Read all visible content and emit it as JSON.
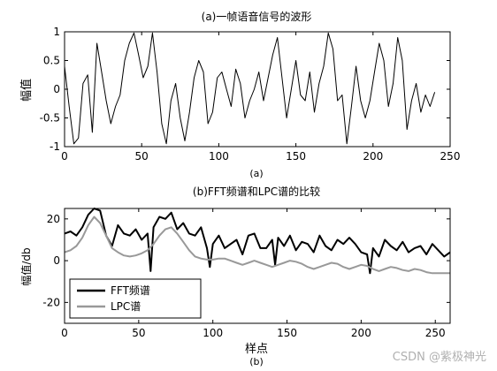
{
  "chart_data": [
    {
      "type": "line",
      "title": "(a)一帧语音信号的波形",
      "xlabel": "(a)",
      "ylabel": "幅值",
      "xlim": [
        0,
        250
      ],
      "ylim": [
        -1,
        1
      ],
      "xticks": [
        "0",
        "50",
        "100",
        "150",
        "200",
        "250"
      ],
      "yticks": [
        "-1",
        "-0.5",
        "0",
        "0.5",
        "1"
      ],
      "series": [
        {
          "color": "#000000",
          "x": [
            0,
            3,
            6,
            9,
            12,
            15,
            18,
            21,
            24,
            27,
            30,
            33,
            36,
            39,
            42,
            45,
            48,
            51,
            54,
            57,
            60,
            63,
            66,
            69,
            72,
            75,
            78,
            81,
            84,
            87,
            90,
            93,
            96,
            99,
            102,
            105,
            108,
            111,
            114,
            117,
            120,
            123,
            126,
            129,
            132,
            135,
            138,
            141,
            144,
            147,
            150,
            153,
            156,
            159,
            162,
            165,
            168,
            171,
            174,
            177,
            180,
            183,
            186,
            189,
            192,
            195,
            198,
            201,
            204,
            207,
            210,
            213,
            216,
            219,
            222,
            225,
            228,
            231,
            234,
            237,
            240
          ],
          "values": [
            0.4,
            -0.3,
            -0.95,
            -0.85,
            0.1,
            0.25,
            -0.75,
            0.8,
            0.3,
            -0.2,
            -0.6,
            -0.3,
            -0.1,
            0.5,
            0.8,
            0.98,
            0.6,
            0.2,
            0.4,
            0.98,
            0.3,
            -0.6,
            -0.95,
            -0.2,
            0.1,
            -0.5,
            -0.9,
            -0.4,
            0.2,
            0.5,
            0.3,
            -0.6,
            -0.4,
            0.2,
            0.3,
            0.0,
            -0.3,
            0.35,
            0.1,
            -0.5,
            -0.2,
            0.0,
            0.3,
            -0.2,
            0.2,
            0.6,
            0.9,
            0.2,
            -0.5,
            0.0,
            0.5,
            -0.1,
            -0.2,
            0.3,
            -0.4,
            0.1,
            0.4,
            0.98,
            0.7,
            -0.2,
            -0.1,
            -0.95,
            -0.3,
            0.4,
            -0.2,
            -0.5,
            -0.2,
            0.3,
            0.8,
            0.5,
            -0.3,
            0.1,
            0.9,
            0.5,
            -0.7,
            -0.2,
            0.1,
            -0.4,
            -0.1,
            -0.3,
            -0.05
          ]
        }
      ]
    },
    {
      "type": "line",
      "title": "(b)FFT频谱和LPC谱的比较",
      "xlabel": "样点",
      "xsublabel": "(b)",
      "ylabel": "幅值/db",
      "xlim": [
        0,
        260
      ],
      "ylim": [
        -30,
        25
      ],
      "xticks": [
        "0",
        "50",
        "100",
        "150",
        "200",
        "250"
      ],
      "yticks": [
        "-20",
        "0",
        "20"
      ],
      "legend_position": "bottom-left",
      "series": [
        {
          "name": "FFT频谱",
          "color": "#000000",
          "x": [
            0,
            4,
            8,
            12,
            16,
            20,
            24,
            28,
            32,
            36,
            40,
            44,
            48,
            52,
            56,
            58,
            60,
            64,
            68,
            72,
            76,
            80,
            84,
            88,
            92,
            96,
            98,
            100,
            104,
            108,
            112,
            116,
            120,
            124,
            128,
            132,
            136,
            140,
            142,
            144,
            148,
            152,
            156,
            160,
            164,
            168,
            172,
            176,
            180,
            184,
            188,
            192,
            196,
            200,
            204,
            206,
            208,
            212,
            216,
            220,
            224,
            228,
            232,
            236,
            240,
            244,
            248,
            252,
            256,
            260
          ],
          "values": [
            13,
            14,
            12,
            16,
            22,
            25,
            24,
            12,
            7,
            17,
            13,
            12,
            15,
            10,
            13,
            -5,
            16,
            21,
            20,
            23,
            15,
            18,
            13,
            12,
            16,
            6,
            -3,
            8,
            12,
            6,
            8,
            10,
            3,
            12,
            13,
            6,
            6,
            10,
            -2,
            11,
            7,
            12,
            5,
            9,
            8,
            4,
            12,
            7,
            5,
            10,
            8,
            11,
            8,
            4,
            3,
            -6,
            6,
            2,
            10,
            7,
            5,
            9,
            4,
            6,
            7,
            3,
            8,
            5,
            2,
            4
          ]
        },
        {
          "name": "LPC谱",
          "color": "#999999",
          "x": [
            0,
            4,
            8,
            12,
            16,
            20,
            24,
            28,
            32,
            36,
            40,
            44,
            48,
            52,
            56,
            60,
            64,
            68,
            72,
            76,
            80,
            84,
            88,
            92,
            96,
            100,
            104,
            108,
            112,
            116,
            120,
            124,
            128,
            132,
            136,
            140,
            144,
            148,
            152,
            156,
            160,
            164,
            168,
            172,
            176,
            180,
            184,
            188,
            192,
            196,
            200,
            204,
            208,
            212,
            216,
            220,
            224,
            228,
            232,
            236,
            240,
            244,
            248,
            252,
            256,
            260
          ],
          "values": [
            4,
            5,
            7,
            11,
            17,
            21,
            18,
            12,
            6,
            4,
            2.5,
            2,
            2.5,
            3.5,
            5,
            8,
            12,
            15,
            16,
            13,
            9,
            5,
            2,
            1,
            0.5,
            0.5,
            1,
            1,
            0,
            -1,
            -2,
            -1,
            0,
            -1,
            -2,
            -3,
            -2,
            -1,
            0,
            -0.5,
            -1.5,
            -3,
            -4,
            -3,
            -2,
            -1,
            -1.5,
            -3,
            -4,
            -3,
            -2,
            -2.5,
            -4,
            -5,
            -4,
            -3,
            -3.5,
            -4.5,
            -5,
            -4,
            -4.5,
            -5.5,
            -6,
            -6,
            -6,
            -6
          ]
        }
      ]
    }
  ],
  "watermark": "CSDN @紫极神光"
}
